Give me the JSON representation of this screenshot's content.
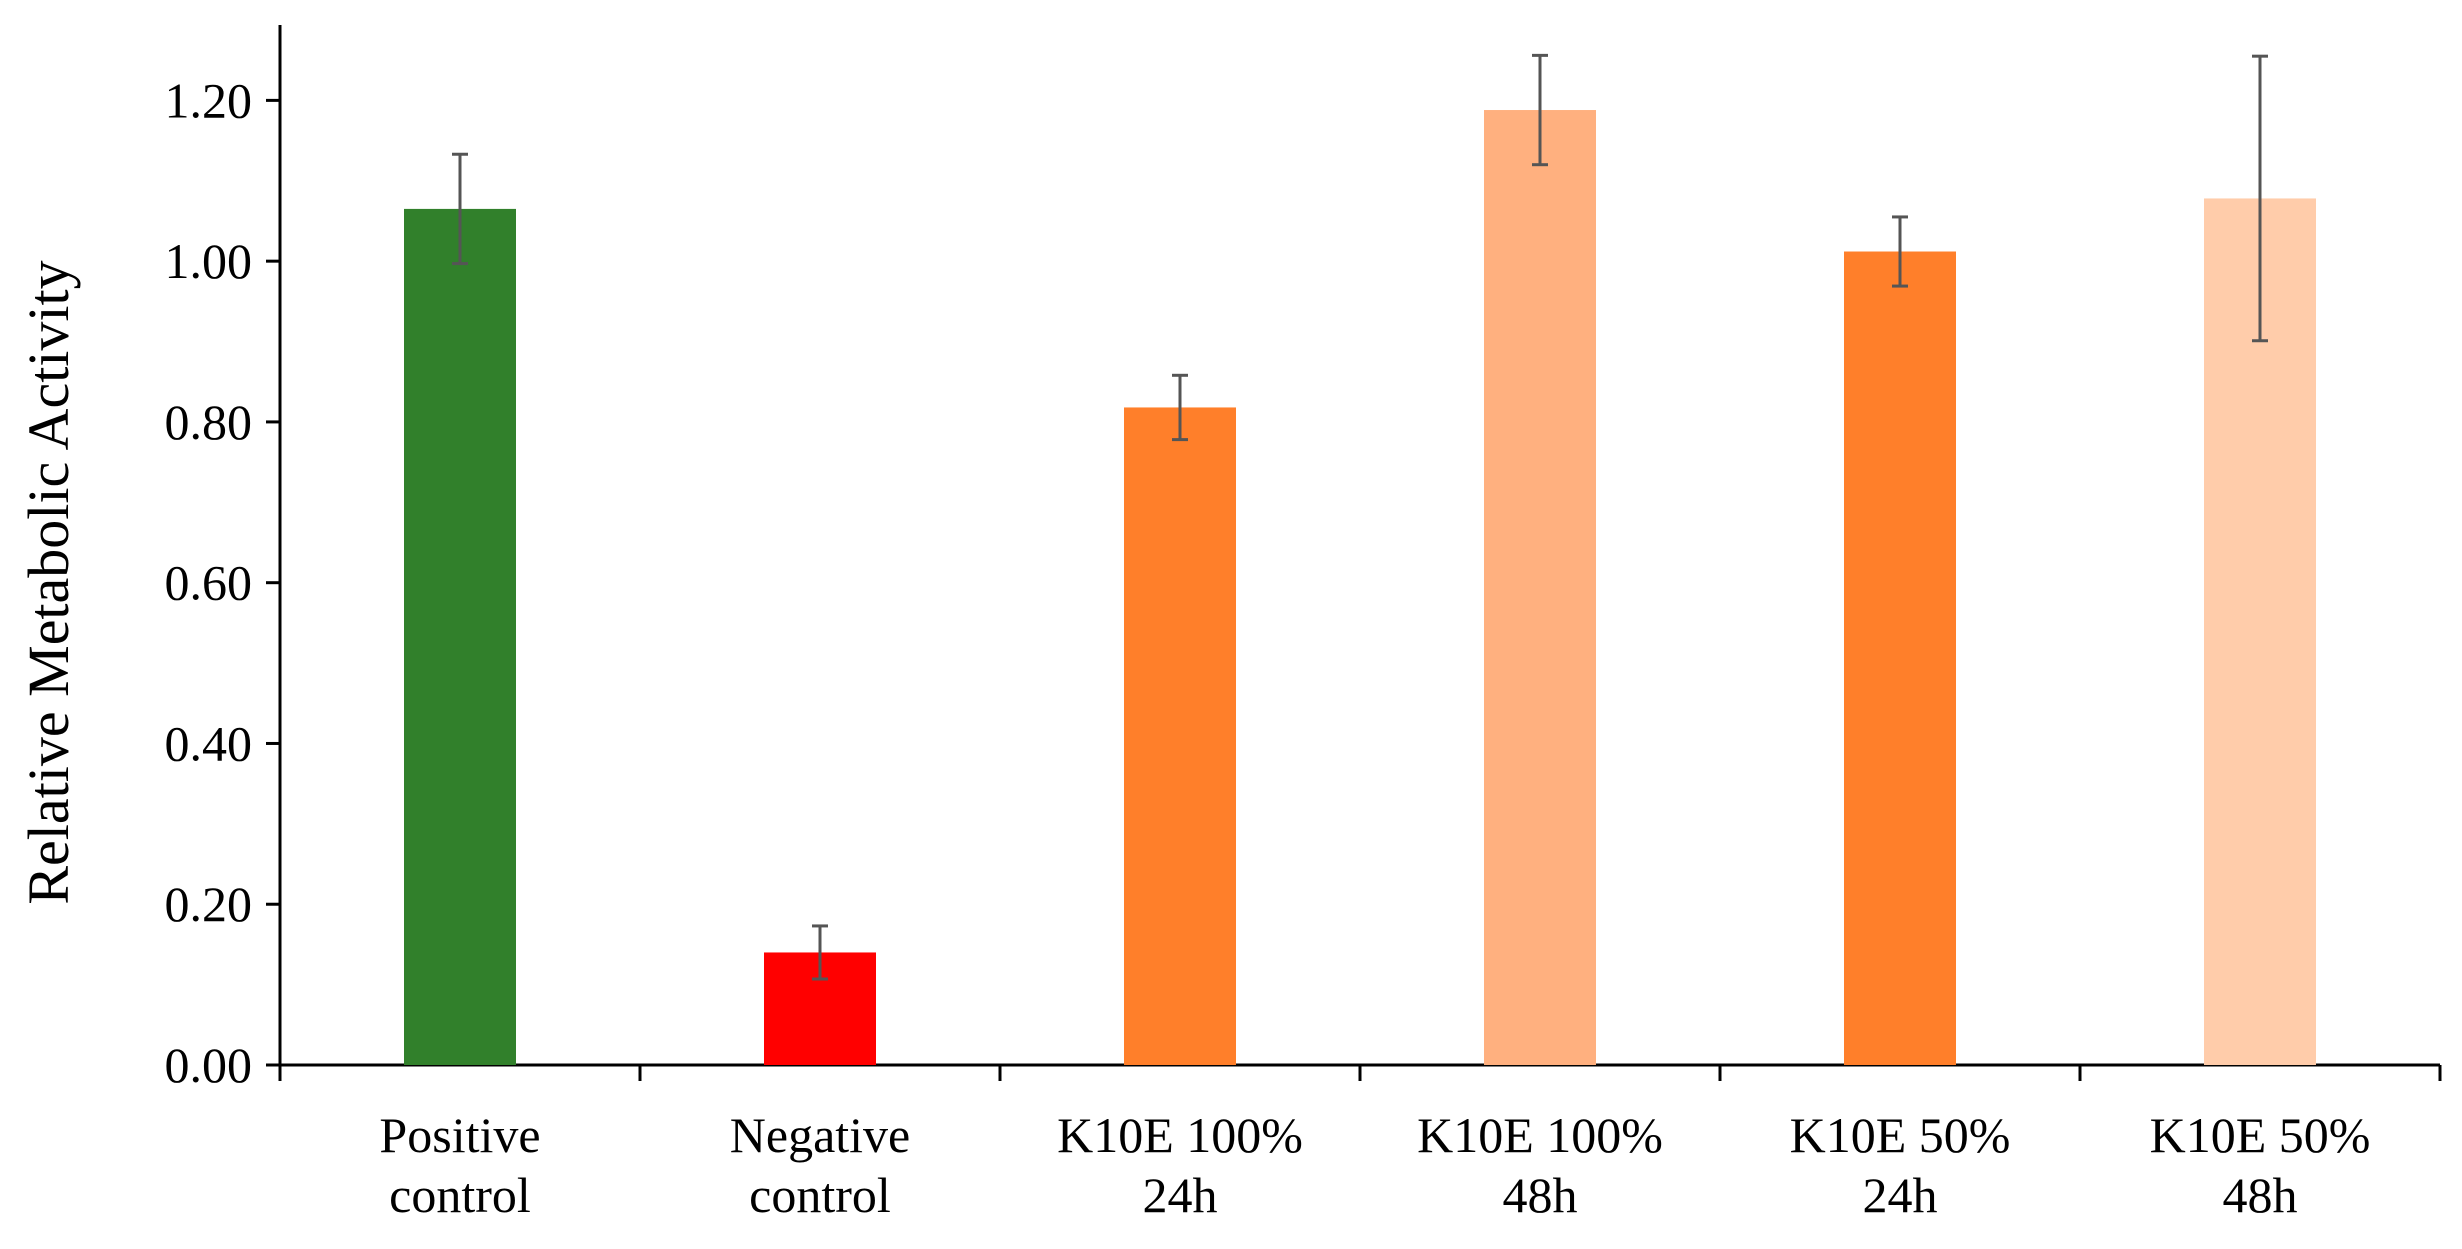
{
  "chart_data": {
    "type": "bar",
    "title": "",
    "xlabel": "",
    "ylabel": "Relative Metabolic Activity",
    "ylim": [
      0,
      1.3
    ],
    "y_ticks": [
      0.0,
      0.2,
      0.4,
      0.6,
      0.8,
      1.0,
      1.2
    ],
    "y_tick_labels": [
      "0.00",
      "0.20",
      "0.40",
      "0.60",
      "0.80",
      "1.00",
      "1.20"
    ],
    "grid": false,
    "legend": "none",
    "categories": [
      [
        "Positive",
        "control"
      ],
      [
        "Negative",
        "control"
      ],
      [
        "K10E 100%",
        "24h"
      ],
      [
        "K10E 100%",
        "48h"
      ],
      [
        "K10E 50%",
        "24h"
      ],
      [
        "K10E 50%",
        "48h"
      ]
    ],
    "values": [
      1.065,
      0.14,
      0.818,
      1.188,
      1.012,
      1.078
    ],
    "errors": [
      0.068,
      0.033,
      0.04,
      0.068,
      0.043,
      0.177
    ],
    "colors": [
      "#31802b",
      "#ff0000",
      "#ff7f2a",
      "#ffb07f",
      "#ff7f2a",
      "#ffccaa"
    ]
  }
}
